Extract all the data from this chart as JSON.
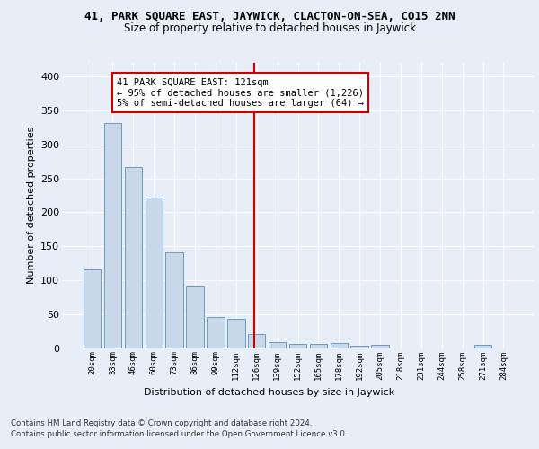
{
  "title1": "41, PARK SQUARE EAST, JAYWICK, CLACTON-ON-SEA, CO15 2NN",
  "title2": "Size of property relative to detached houses in Jaywick",
  "xlabel": "Distribution of detached houses by size in Jaywick",
  "ylabel": "Number of detached properties",
  "categories": [
    "20sqm",
    "33sqm",
    "46sqm",
    "60sqm",
    "73sqm",
    "86sqm",
    "99sqm",
    "112sqm",
    "126sqm",
    "139sqm",
    "152sqm",
    "165sqm",
    "178sqm",
    "192sqm",
    "205sqm",
    "218sqm",
    "231sqm",
    "244sqm",
    "258sqm",
    "271sqm",
    "284sqm"
  ],
  "values": [
    116,
    332,
    267,
    222,
    141,
    90,
    46,
    43,
    21,
    9,
    6,
    6,
    7,
    3,
    4,
    0,
    0,
    0,
    0,
    4,
    0
  ],
  "bar_color": "#c8d8e8",
  "bar_edge_color": "#6a9cc0",
  "annotation_text": "41 PARK SQUARE EAST: 121sqm\n← 95% of detached houses are smaller (1,226)\n5% of semi-detached houses are larger (64) →",
  "annotation_box_color": "#ffffff",
  "annotation_box_edge_color": "#cc0000",
  "vline_color": "#cc0000",
  "footer1": "Contains HM Land Registry data © Crown copyright and database right 2024.",
  "footer2": "Contains public sector information licensed under the Open Government Licence v3.0.",
  "bg_color": "#e8eef8",
  "plot_bg_color": "#e8eef8",
  "ylim": [
    0,
    420
  ],
  "yticks": [
    0,
    50,
    100,
    150,
    200,
    250,
    300,
    350,
    400
  ]
}
